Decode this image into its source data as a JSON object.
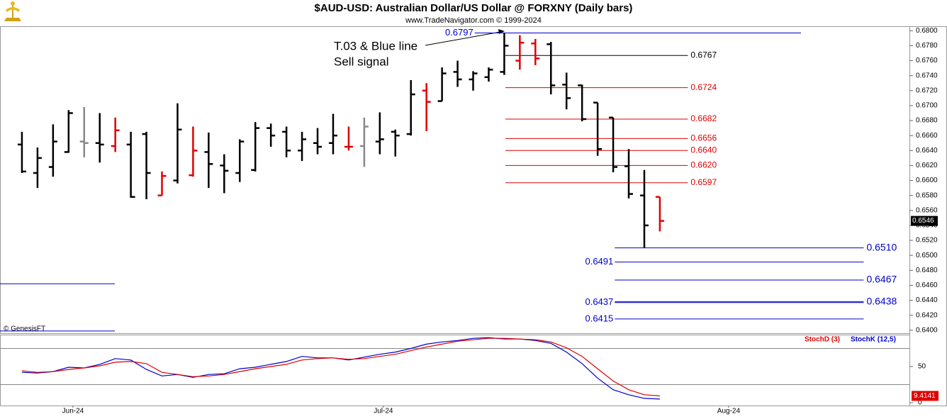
{
  "chart_data": [
    {
      "type": "ohlc",
      "title": "$AUD-USD:  Australian Dollar/US Dollar @ FORXNY  (Daily bars)",
      "subtitle": "www.TradeNavigator.com © 1999-2024",
      "annotations": [
        "T.03 & Blue line",
        "Sell signal"
      ],
      "copyright": "© GenesisFT",
      "open": [
        0.6648,
        0.661,
        0.6618,
        0.6638,
        0.6652,
        0.665,
        0.6646,
        0.6648,
        0.6662,
        0.658,
        0.66,
        0.6607,
        0.6638,
        0.662,
        0.661,
        0.6614,
        0.667,
        0.6665,
        0.664,
        0.665,
        0.665,
        0.6645,
        0.6646,
        0.6652,
        0.6665,
        0.6662,
        0.672,
        0.6706,
        0.6745,
        0.6735,
        0.6738,
        0.6745,
        0.676,
        0.6783,
        0.6782,
        0.6728,
        0.6727,
        0.6704,
        0.6684,
        0.6619,
        0.658,
        0.6578
      ],
      "high": [
        0.6665,
        0.6644,
        0.6675,
        0.6694,
        0.6698,
        0.669,
        0.6684,
        0.6665,
        0.6665,
        0.6612,
        0.6703,
        0.6672,
        0.6664,
        0.6635,
        0.6655,
        0.6678,
        0.6676,
        0.6672,
        0.6665,
        0.667,
        0.6689,
        0.6672,
        0.6684,
        0.6691,
        0.6668,
        0.6734,
        0.673,
        0.6751,
        0.676,
        0.6746,
        0.6751,
        0.6797,
        0.6794,
        0.6789,
        0.6785,
        0.6744,
        0.6728,
        0.6704,
        0.6684,
        0.6642,
        0.6614,
        0.6578
      ],
      "low": [
        0.661,
        0.659,
        0.6605,
        0.6637,
        0.6631,
        0.6624,
        0.6638,
        0.6577,
        0.6575,
        0.658,
        0.6596,
        0.6605,
        0.659,
        0.6583,
        0.6598,
        0.6612,
        0.6645,
        0.6631,
        0.6626,
        0.6635,
        0.6635,
        0.664,
        0.6618,
        0.6635,
        0.6632,
        0.666,
        0.6666,
        0.6706,
        0.6725,
        0.672,
        0.6732,
        0.6741,
        0.6748,
        0.6754,
        0.6715,
        0.6695,
        0.6679,
        0.6633,
        0.6611,
        0.6576,
        0.651,
        0.6532
      ],
      "close": [
        0.6612,
        0.663,
        0.6652,
        0.669,
        0.665,
        0.6648,
        0.6667,
        0.6578,
        0.661,
        0.6606,
        0.6668,
        0.664,
        0.6622,
        0.6613,
        0.6652,
        0.667,
        0.666,
        0.664,
        0.6655,
        0.6645,
        0.666,
        0.6645,
        0.6672,
        0.6655,
        0.666,
        0.6715,
        0.6705,
        0.6743,
        0.6735,
        0.6743,
        0.6748,
        0.678,
        0.6784,
        0.6763,
        0.6727,
        0.671,
        0.6682,
        0.6642,
        0.6618,
        0.6582,
        0.654,
        0.6546
      ],
      "bar_colors": [
        "#000000",
        "#000000",
        "#000000",
        "#000000",
        "#888888",
        "#000000",
        "#e00000",
        "#000000",
        "#000000",
        "#e00000",
        "#000000",
        "#e00000",
        "#000000",
        "#000000",
        "#000000",
        "#000000",
        "#000000",
        "#000000",
        "#000000",
        "#000000",
        "#000000",
        "#e00000",
        "#888888",
        "#000000",
        "#000000",
        "#000000",
        "#e00000",
        "#000000",
        "#000000",
        "#000000",
        "#000000",
        "#000000",
        "#e00000",
        "#e00000",
        "#000000",
        "#000000",
        "#000000",
        "#000000",
        "#000000",
        "#000000",
        "#000000",
        "#e00000"
      ],
      "xlim": [
        -1.41,
        57.04
      ],
      "xticks": [
        {
          "value": 3.28,
          "label": "Jun-24"
        },
        {
          "value": 23.23,
          "label": "Jul-24"
        },
        {
          "value": 45.42,
          "label": "Aug-24"
        }
      ],
      "ylim": [
        0.6396,
        0.6806
      ],
      "yticks": [
        {
          "value": 0.64,
          "label": "0.6400"
        },
        {
          "value": 0.642,
          "label": "0.6420"
        },
        {
          "value": 0.644,
          "label": "0.6440"
        },
        {
          "value": 0.646,
          "label": "0.6460"
        },
        {
          "value": 0.648,
          "label": "0.6480"
        },
        {
          "value": 0.65,
          "label": "0.6500"
        },
        {
          "value": 0.652,
          "label": "0.6520"
        },
        {
          "value": 0.654,
          "label": "0.6540"
        },
        {
          "value": 0.656,
          "label": "0.6560"
        },
        {
          "value": 0.658,
          "label": "0.6580"
        },
        {
          "value": 0.66,
          "label": "0.6600"
        },
        {
          "value": 0.662,
          "label": "0.6620"
        },
        {
          "value": 0.664,
          "label": "0.6640"
        },
        {
          "value": 0.666,
          "label": "0.6660"
        },
        {
          "value": 0.668,
          "label": "0.6680"
        },
        {
          "value": 0.67,
          "label": "0.6700"
        },
        {
          "value": 0.672,
          "label": "0.6720"
        },
        {
          "value": 0.674,
          "label": "0.6740"
        },
        {
          "value": 0.676,
          "label": "0.6760"
        },
        {
          "value": 0.678,
          "label": "0.6780"
        },
        {
          "value": 0.68,
          "label": "0.6800"
        }
      ],
      "levels": [
        {
          "value": 0.6797,
          "color": "#0000cc",
          "label_side": "left",
          "x_range": [
            29.1,
            50.07
          ]
        },
        {
          "value": 0.6767,
          "color": "#000000",
          "label_side": "right",
          "x_range": [
            31.07,
            42.8
          ]
        },
        {
          "value": 0.6724,
          "color": "#e00000",
          "label_side": "right",
          "x_range": [
            31.07,
            42.8
          ]
        },
        {
          "value": 0.6682,
          "color": "#e00000",
          "label_side": "right",
          "x_range": [
            31.07,
            42.8
          ]
        },
        {
          "value": 0.6656,
          "color": "#e00000",
          "label_side": "right",
          "x_range": [
            31.07,
            42.8
          ]
        },
        {
          "value": 0.664,
          "label": "0.6640",
          "color": "#e00000",
          "label_side": "right",
          "x_range": [
            31.07,
            42.8
          ]
        },
        {
          "value": 0.662,
          "label": "0.6620",
          "color": "#e00000",
          "label_side": "right",
          "x_range": [
            31.07,
            42.8
          ]
        },
        {
          "value": 0.6597,
          "color": "#e00000",
          "label_side": "right",
          "x_range": [
            31.07,
            42.8
          ]
        },
        {
          "value": 0.651,
          "label": "0.6510",
          "color": "#0000cc",
          "label_side": "right",
          "x_range": [
            38.1,
            54.1
          ]
        },
        {
          "value": 0.6491,
          "color": "#0000cc",
          "label_side": "left",
          "x_range": [
            38.1,
            54.1
          ]
        },
        {
          "value": 0.6467,
          "color": "#0000cc",
          "label_side": "right",
          "x_range": [
            38.1,
            54.1
          ]
        },
        {
          "value": 0.6437,
          "color": "#0000cc",
          "label_side": "left",
          "x_range": [
            38.1,
            54.1
          ]
        },
        {
          "value": 0.6438,
          "color": "#0000cc",
          "label_side": "right",
          "x_range": [
            38.1,
            54.1
          ]
        },
        {
          "value": 0.6415,
          "color": "#0000cc",
          "label_side": "left",
          "x_range": [
            38.1,
            54.1
          ]
        },
        {
          "value": 0.6462,
          "color": "#0000cc",
          "x_range": [
            -1.41,
            5.97
          ]
        },
        {
          "value": 0.6399,
          "color": "#0000cc",
          "x_range": [
            -1.41,
            5.97
          ]
        }
      ]
    },
    {
      "type": "line",
      "series": [
        {
          "name": "StochD (3)",
          "color": "#e00000",
          "values": [
            44,
            42,
            43,
            46,
            48,
            51,
            56,
            57,
            54,
            42,
            39,
            36,
            37,
            39,
            43,
            47,
            50,
            53,
            59,
            61,
            62,
            60,
            61,
            64,
            67,
            72,
            77,
            81,
            85,
            87,
            89,
            89,
            88,
            87,
            84,
            76,
            64,
            47,
            30,
            18,
            11,
            9.4141
          ]
        },
        {
          "name": "StochK (12,5)",
          "color": "#0000cc",
          "values": [
            42,
            41,
            43,
            49,
            48,
            53,
            61,
            59,
            46,
            37,
            39,
            35,
            39,
            40,
            47,
            49,
            53,
            57,
            64,
            62,
            62,
            59,
            63,
            67,
            70,
            75,
            81,
            84,
            86,
            89,
            90,
            88,
            88,
            86,
            82,
            70,
            54,
            34,
            18,
            11,
            6,
            5
          ]
        }
      ],
      "ylim": [
        -3.9,
        94.1
      ],
      "yticks": [
        0,
        50
      ],
      "ref_lines": [
        25,
        75
      ]
    }
  ]
}
